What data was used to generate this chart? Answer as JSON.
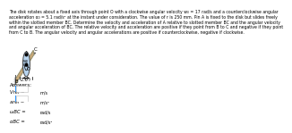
{
  "title_lines": [
    "The disk rotates about a fixed axis through point O with a clockwise angular velocity w₀ = 17 rad/s and a counterclockwise angular",
    "acceleration α₀ = 5.1 rad/s² at the instant under consideration. The value of r is 250 mm. Pin A is fixed to the disk but slides freely",
    "within the slotted member BC. Determine the velocity and acceleration of A relative to slotted member BC and the angular velocity",
    "and angular acceleration of BC. The relative velocity and acceleration are positive if they point from B to C and negative if they point",
    "from C to B. The angular velocity and angular accelerations are positive if counterclockwise, negative if clockwise."
  ],
  "answers_label": "Answers:",
  "rows": [
    {
      "label": "Vrel =",
      "unit": "m/s"
    },
    {
      "label": "arel =",
      "unit": "m/s²"
    },
    {
      "label": "ωBC =",
      "unit": "rad/s"
    },
    {
      "label": "αBC =",
      "unit": "rad/s²"
    }
  ],
  "bg_color": "#ffffff",
  "box_color": "#3399ff",
  "text_color": "#000000",
  "disk_color": "#b8d4ee",
  "disk_edge_color": "#444444",
  "bar_color": "#c8a878",
  "bar_edge_color": "#888866",
  "r_label": "2.6 r",
  "wo_label": "w₀",
  "ao_label": "α₀",
  "O_label": "O",
  "A_label": "A",
  "B_label": "B",
  "C_label": "C"
}
